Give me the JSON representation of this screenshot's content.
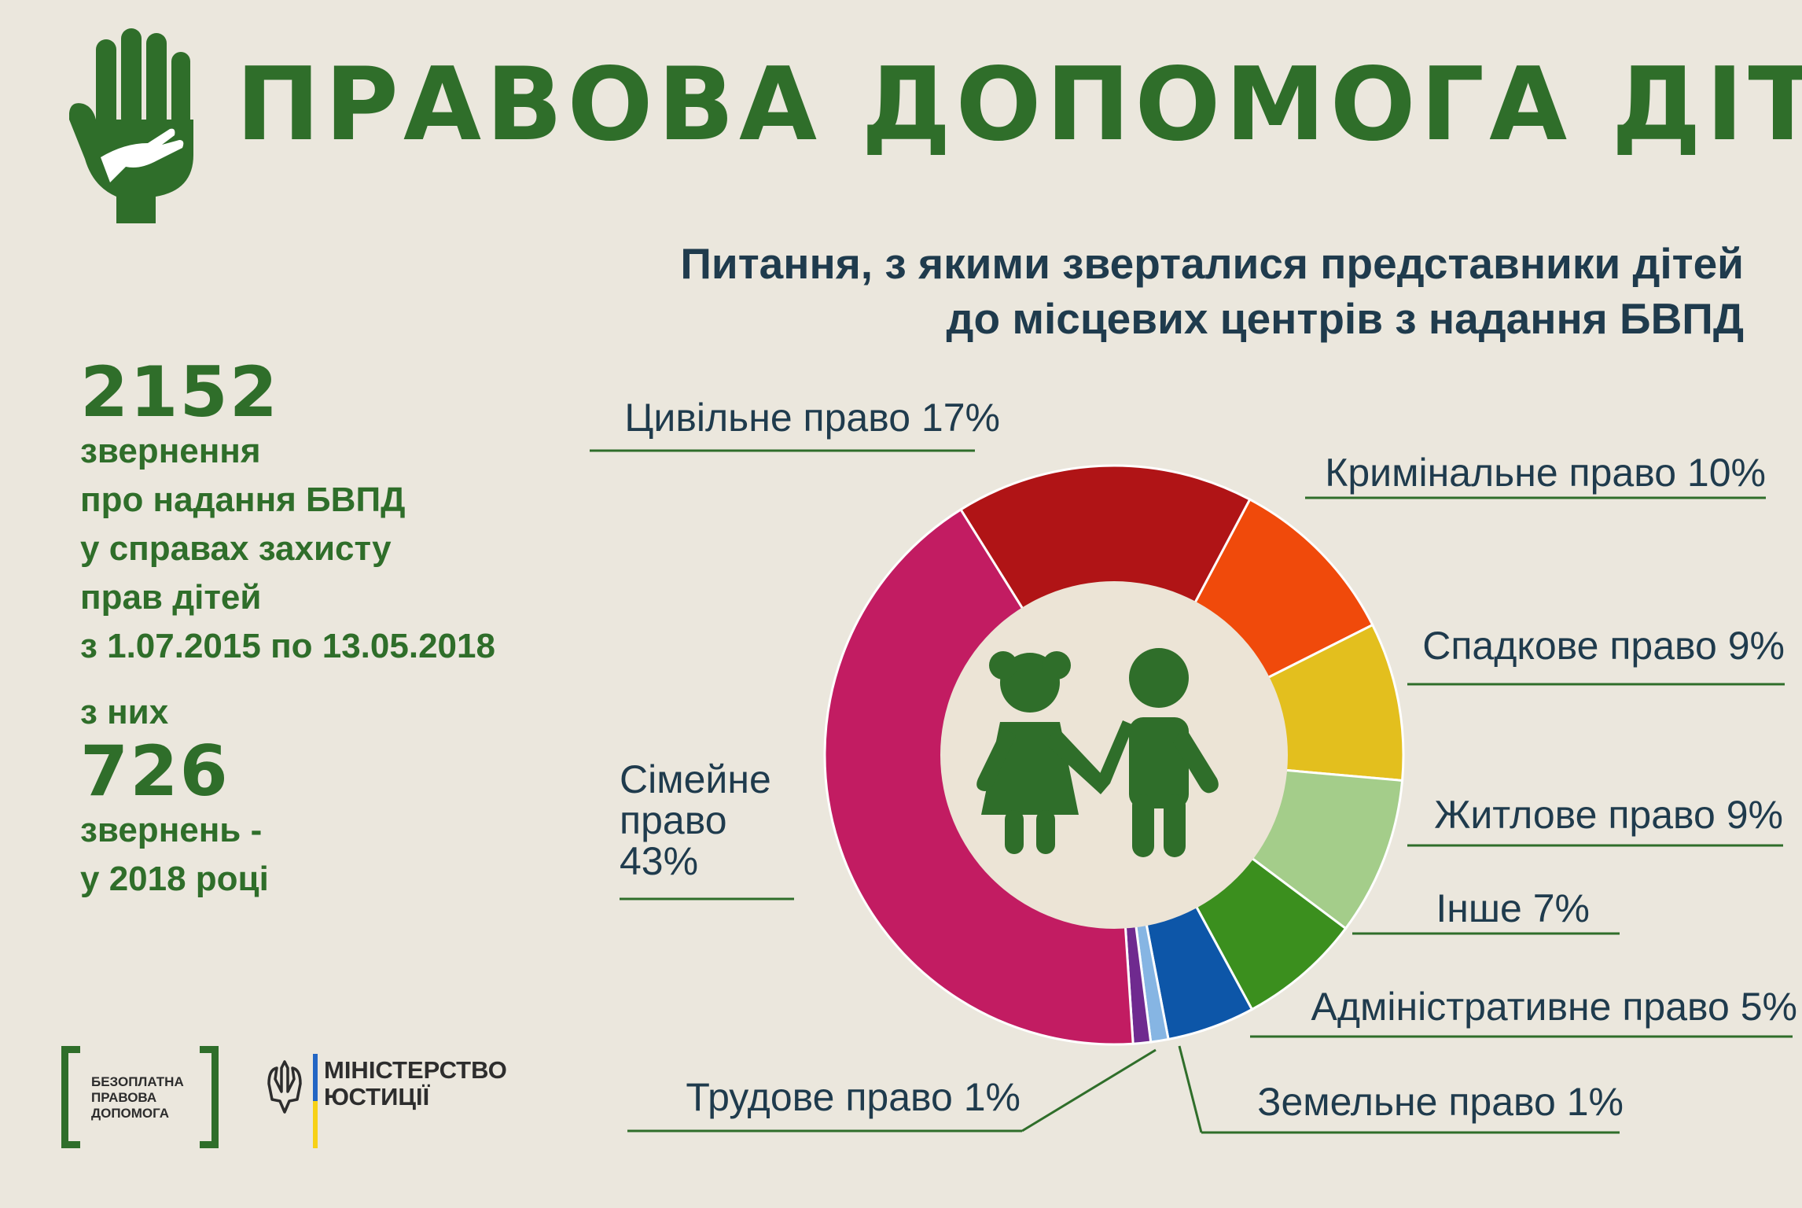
{
  "header": {
    "title": "ПРАВОВА ДОПОМОГА ДІТЯМ",
    "logo_icon": "hands-icon"
  },
  "subtitle": {
    "line1": "Питання, з якими зверталися представники дітей",
    "line2": "до місцевих центрів з надання БВПД"
  },
  "stats": {
    "total_number": "2152",
    "total_lines": [
      "звернення",
      "про надання БВПД",
      "у справах захисту",
      "прав дітей",
      "з 1.07.2015 по 13.05.2018"
    ],
    "sub_intro": "з них",
    "sub_number": "726",
    "sub_lines": [
      "звернень -",
      "у 2018 році"
    ]
  },
  "chart_data": {
    "type": "pie",
    "donut": true,
    "center_icon": "children-holding-hands-icon",
    "categories": [
      "Цивільне право 17%",
      "Кримінальне право 10%",
      "Спадкове право 9%",
      "Житлове право 9%",
      "Інше 7%",
      "Адміністративне право 5%",
      "Земельне право 1%",
      "Трудове право 1%",
      "Сімейне право 43%"
    ],
    "values": [
      17,
      10,
      9,
      9,
      7,
      5,
      1,
      1,
      43
    ],
    "colors": [
      "#b01416",
      "#f04a0b",
      "#e3bf1e",
      "#a4cd8a",
      "#3b8f1e",
      "#0d56a8",
      "#86b5e3",
      "#6f2a8f",
      "#c21c62"
    ]
  },
  "footer": {
    "logo1_lines": [
      "БЕЗОПЛАТНА",
      "ПРАВОВА",
      "ДОПОМОГА"
    ],
    "logo2_lines": [
      "МІНІСТЕРСТВО",
      "ЮСТИЦІЇ"
    ],
    "logo2_icon": "trident-icon",
    "flag_colors": [
      "#2366c4",
      "#f7d117"
    ]
  },
  "colors": {
    "background": "#ebe7dd",
    "green": "#2f6e2a",
    "navy": "#1f3b4d"
  }
}
